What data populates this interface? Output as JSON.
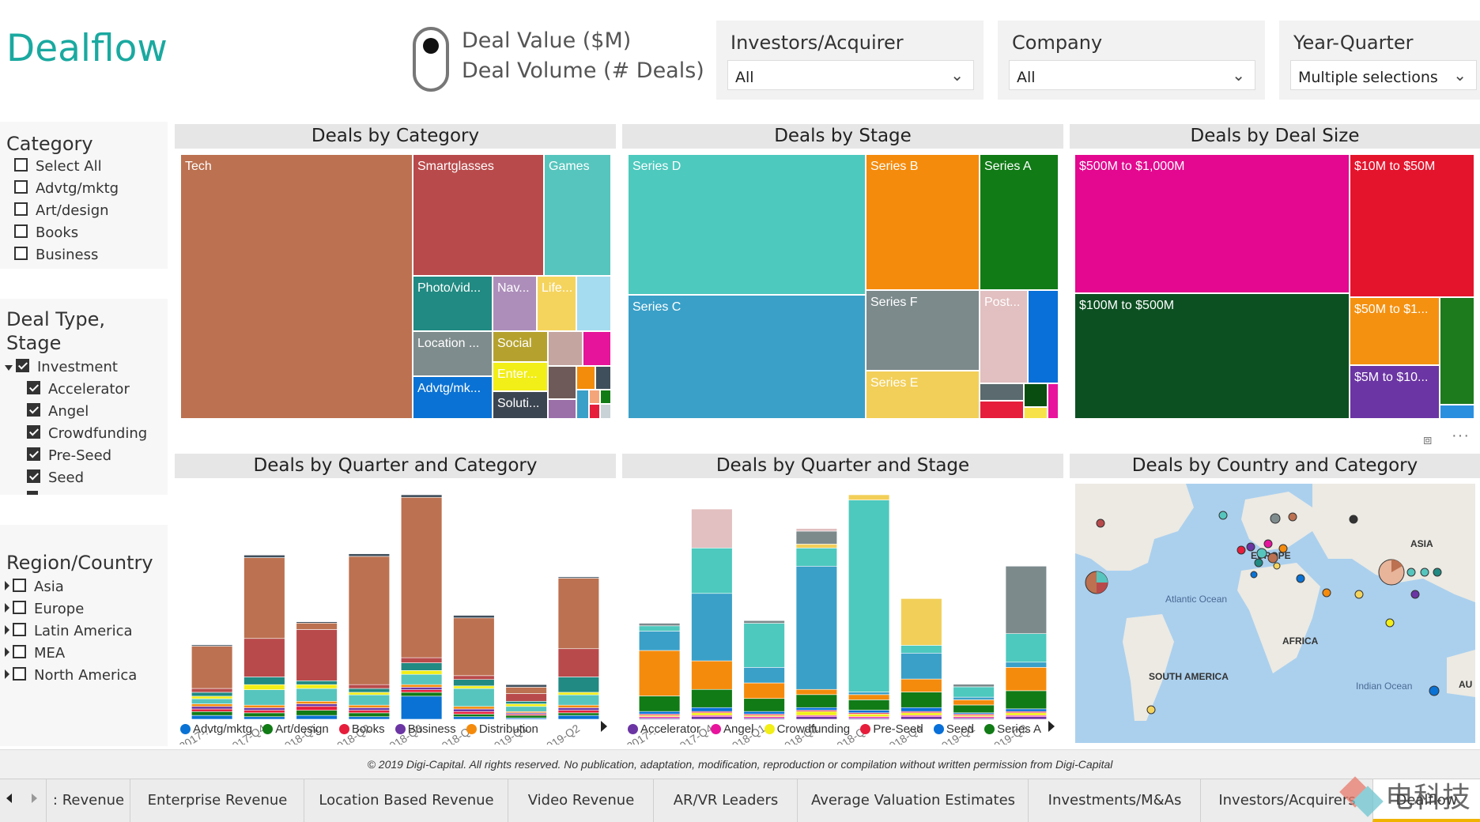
{
  "app": {
    "title": "Dealflow"
  },
  "toggle": {
    "option1": "Deal Value ($M)",
    "option2": "Deal Volume (# Deals)"
  },
  "slicers": [
    {
      "title": "Investors/Acquirer",
      "value": "All"
    },
    {
      "title": "Company",
      "value": "All"
    },
    {
      "title": "Year-Quarter",
      "value": "Multiple selections"
    }
  ],
  "category_filter": {
    "title": "Category",
    "items": [
      {
        "label": "Select All",
        "checked": false
      },
      {
        "label": "Advtg/mktg",
        "checked": false
      },
      {
        "label": "Art/design",
        "checked": false
      },
      {
        "label": "Books",
        "checked": false
      },
      {
        "label": "Business",
        "checked": false
      }
    ]
  },
  "stage_filter": {
    "title_line1": "Deal Type,",
    "title_line2": "Stage",
    "parent": {
      "label": "Investment",
      "checked": true
    },
    "items": [
      {
        "label": "Accelerator",
        "checked": true
      },
      {
        "label": "Angel",
        "checked": true
      },
      {
        "label": "Crowdfunding",
        "checked": true
      },
      {
        "label": "Pre-Seed",
        "checked": true
      },
      {
        "label": "Seed",
        "checked": true
      }
    ]
  },
  "region_filter": {
    "title": "Region/Country",
    "items": [
      {
        "label": "Asia",
        "checked": false
      },
      {
        "label": "Europe",
        "checked": false
      },
      {
        "label": "Latin America",
        "checked": false
      },
      {
        "label": "MEA",
        "checked": false
      },
      {
        "label": "North America",
        "checked": false
      }
    ]
  },
  "visuals": {
    "category_treemap": {
      "title": "Deals by Category"
    },
    "stage_treemap": {
      "title": "Deals by Stage"
    },
    "size_treemap": {
      "title": "Deals by Deal Size"
    },
    "quarter_category": {
      "title": "Deals by Quarter and Category"
    },
    "quarter_stage": {
      "title": "Deals by Quarter and Stage"
    },
    "country_map": {
      "title": "Deals by Country and Category"
    }
  },
  "treemaps": {
    "category": [
      {
        "label": "Tech",
        "color": "#bc7150"
      },
      {
        "label": "Smartglasses",
        "color": "#b94a4b"
      },
      {
        "label": "Games",
        "color": "#56c5bd"
      },
      {
        "label": "Photo/vid...",
        "color": "#218a82"
      },
      {
        "label": "Nav...",
        "color": "#ad8eba"
      },
      {
        "label": "Life...",
        "color": "#f5d45e"
      },
      {
        "label": "",
        "color": "#a6dcef"
      },
      {
        "label": "Location ...",
        "color": "#7f8c8d"
      },
      {
        "label": "Social",
        "color": "#b5a22e"
      },
      {
        "label": "",
        "color": "#c4a5a0"
      },
      {
        "label": "",
        "color": "#e6149a"
      },
      {
        "label": "Advtg/mk...",
        "color": "#0a72d4"
      },
      {
        "label": "Enter...",
        "color": "#f2ee17"
      },
      {
        "label": "",
        "color": "#6e5a58"
      },
      {
        "label": "",
        "color": "#f28c0a"
      },
      {
        "label": "",
        "color": "#404f5c"
      },
      {
        "label": "Soluti...",
        "color": "#3b4551"
      }
    ],
    "stage": [
      {
        "label": "Series D",
        "color": "#4dc9be"
      },
      {
        "label": "Series C",
        "color": "#3aa0c8"
      },
      {
        "label": "Series B",
        "color": "#f58b0c"
      },
      {
        "label": "Series A",
        "color": "#117b16"
      },
      {
        "label": "Series F",
        "color": "#7c8a8c"
      },
      {
        "label": "Post...",
        "color": "#e2bfc0"
      },
      {
        "label": "",
        "color": "#0870d8"
      },
      {
        "label": "Series E",
        "color": "#f2cf58"
      },
      {
        "label": "",
        "color": "#5a6a6e"
      },
      {
        "label": "",
        "color": "#0a4d10"
      },
      {
        "label": "",
        "color": "#e61e3b"
      },
      {
        "label": "",
        "color": "#f7e24a"
      },
      {
        "label": "",
        "color": "#e8149d"
      }
    ],
    "size": [
      {
        "label": "$500M to $1,000M",
        "color": "#e3088f"
      },
      {
        "label": "$10M to $50M",
        "color": "#e5142d"
      },
      {
        "label": "$100M to $500M",
        "color": "#0c5022"
      },
      {
        "label": "$50M to $1...",
        "color": "#f59110"
      },
      {
        "label": "",
        "color": "#1d7a1d"
      },
      {
        "label": "$5M to $10...",
        "color": "#6b35a3"
      },
      {
        "label": "",
        "color": "#2b8fe0"
      }
    ]
  },
  "chart_data": [
    {
      "type": "bar",
      "title": "Deals by Quarter and Category",
      "categories": [
        "2017-...",
        "2017-Q4",
        "2018-Q1",
        "2018-Q2",
        "2018-Q3",
        "2018-Q4",
        "2019-Q1",
        "2019-Q2"
      ],
      "series": [
        {
          "name": "Advtg/mktg",
          "color": "#0a72d4",
          "values": [
            3,
            2,
            3,
            2,
            18,
            2,
            1,
            3
          ]
        },
        {
          "name": "Art/design",
          "color": "#117b16",
          "values": [
            3,
            3,
            4,
            3,
            3,
            2,
            2,
            2
          ]
        },
        {
          "name": "Books",
          "color": "#e61e3b",
          "values": [
            2,
            2,
            3,
            2,
            2,
            2,
            1,
            2
          ]
        },
        {
          "name": "Business",
          "color": "#6b35a3",
          "values": [
            2,
            2,
            2,
            2,
            2,
            2,
            1,
            2
          ]
        },
        {
          "name": "Distribution",
          "color": "#f58b0c",
          "values": [
            2,
            2,
            2,
            2,
            2,
            2,
            1,
            2
          ]
        },
        {
          "name": "",
          "color": "#56c5bd",
          "values": [
            4,
            12,
            10,
            8,
            8,
            14,
            4,
            8
          ]
        },
        {
          "name": "",
          "color": "#f2ee17",
          "values": [
            2,
            4,
            3,
            2,
            3,
            2,
            2,
            2
          ]
        },
        {
          "name": "",
          "color": "#218a82",
          "values": [
            3,
            6,
            3,
            3,
            6,
            5,
            2,
            12
          ]
        },
        {
          "name": "",
          "color": "#b94a4b",
          "values": [
            3,
            30,
            40,
            3,
            4,
            3,
            6,
            22
          ]
        },
        {
          "name": "",
          "color": "#bc7150",
          "values": [
            33,
            63,
            5,
            100,
            125,
            45,
            5,
            55
          ]
        },
        {
          "name": "",
          "color": "#404f5c",
          "values": [
            1,
            2,
            1,
            2,
            2,
            2,
            2,
            1
          ]
        }
      ],
      "legend_shown": [
        "Advtg/mktg",
        "Art/design",
        "Books",
        "Business",
        "Distribution"
      ]
    },
    {
      "type": "bar",
      "title": "Deals by Quarter and Stage",
      "categories": [
        "2017-...",
        "2017-Q4",
        "2018-Q1",
        "2018-Q2",
        "2018-Q3",
        "2018-Q4",
        "2019-Q1",
        "2019-Q2"
      ],
      "series": [
        {
          "name": "Accelerator",
          "color": "#6b35a3",
          "values": [
            1,
            2,
            1,
            2,
            1,
            2,
            1,
            2
          ]
        },
        {
          "name": "Angel",
          "color": "#e8149d",
          "values": [
            1,
            1,
            1,
            1,
            1,
            1,
            1,
            1
          ]
        },
        {
          "name": "Crowdfunding",
          "color": "#f2ee17",
          "values": [
            1,
            2,
            1,
            3,
            2,
            2,
            1,
            2
          ]
        },
        {
          "name": "Pre-Seed",
          "color": "#e61e3b",
          "values": [
            1,
            1,
            1,
            1,
            1,
            1,
            1,
            1
          ]
        },
        {
          "name": "Seed",
          "color": "#0870d8",
          "values": [
            2,
            3,
            2,
            2,
            2,
            3,
            1,
            2
          ]
        },
        {
          "name": "Series A",
          "color": "#117b16",
          "values": [
            12,
            14,
            10,
            10,
            8,
            12,
            6,
            14
          ]
        },
        {
          "name": "",
          "color": "#f58b0c",
          "values": [
            35,
            22,
            12,
            4,
            4,
            10,
            4,
            18
          ]
        },
        {
          "name": "",
          "color": "#3aa0c8",
          "values": [
            15,
            52,
            12,
            95,
            2,
            20,
            2,
            4
          ]
        },
        {
          "name": "",
          "color": "#4dc9be",
          "values": [
            4,
            35,
            34,
            14,
            148,
            6,
            8,
            22
          ]
        },
        {
          "name": "",
          "color": "#f2cf58",
          "values": [
            0,
            0,
            0,
            3,
            4,
            36,
            0,
            0
          ]
        },
        {
          "name": "",
          "color": "#7c8a8c",
          "values": [
            2,
            0,
            2,
            10,
            0,
            0,
            2,
            52
          ]
        },
        {
          "name": "",
          "color": "#e2bfc0",
          "values": [
            0,
            30,
            0,
            2,
            0,
            0,
            0,
            0
          ]
        }
      ],
      "legend_shown": [
        "Accelerator",
        "Angel",
        "Crowdfunding",
        "Pre-Seed",
        "Seed",
        "Series A"
      ]
    }
  ],
  "map": {
    "labels": [
      "EUROPE",
      "ASIA",
      "AFRICA",
      "SOUTH AMERICA",
      "Atlantic Ocean",
      "Indian Ocean",
      "AU"
    ]
  },
  "footer": {
    "text": "© 2019 Digi-Capital. All rights reserved. No publication, adaptation, modification, reproduction or compilation without written permission from Digi-Capital"
  },
  "tabs": [
    {
      "label": ": Revenue"
    },
    {
      "label": "Enterprise Revenue"
    },
    {
      "label": "Location Based Revenue"
    },
    {
      "label": "Video Revenue"
    },
    {
      "label": "AR/VR Leaders"
    },
    {
      "label": "Average Valuation Estimates"
    },
    {
      "label": "Investments/M&As"
    },
    {
      "label": "Investors/Acquirers"
    },
    {
      "label": "Dealflow"
    }
  ],
  "watermark": {
    "text": "电科技"
  }
}
